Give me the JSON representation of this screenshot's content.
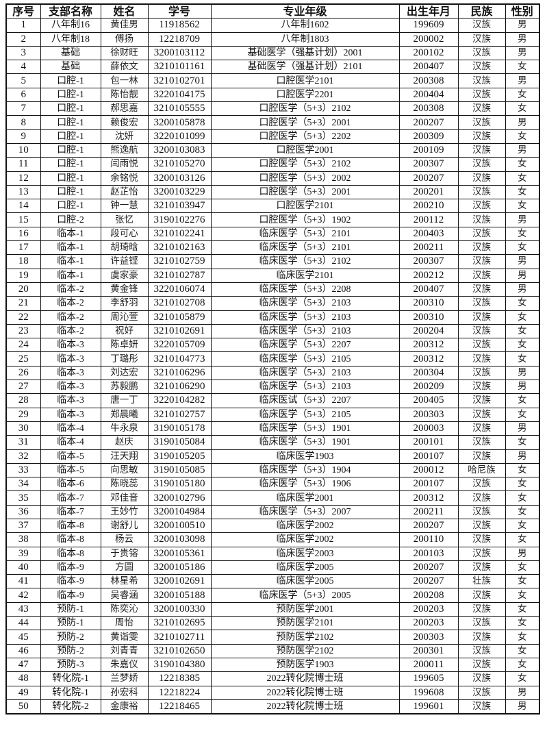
{
  "headers": [
    "序号",
    "支部名称",
    "姓名",
    "学号",
    "专业年级",
    "出生年月",
    "民族",
    "性别"
  ],
  "rows": [
    [
      "1",
      "八年制16",
      "黄佳男",
      "11918562",
      "八年制1602",
      "199609",
      "汉族",
      "男"
    ],
    [
      "2",
      "八年制18",
      "傅扬",
      "12218709",
      "八年制1803",
      "200002",
      "汉族",
      "男"
    ],
    [
      "3",
      "基础",
      "徐财旺",
      "3200103112",
      "基础医学（强基计划）2001",
      "200102",
      "汉族",
      "男"
    ],
    [
      "4",
      "基础",
      "薛依文",
      "3210101161",
      "基础医学（强基计划）2101",
      "200407",
      "汉族",
      "女"
    ],
    [
      "5",
      "口腔-1",
      "包一林",
      "3210102701",
      "口腔医学2101",
      "200308",
      "汉族",
      "男"
    ],
    [
      "6",
      "口腔-1",
      "陈怡靓",
      "3220104175",
      "口腔医学2201",
      "200404",
      "汉族",
      "女"
    ],
    [
      "7",
      "口腔-1",
      "郝思嘉",
      "3210105555",
      "口腔医学（5+3）2102",
      "200308",
      "汉族",
      "女"
    ],
    [
      "8",
      "口腔-1",
      "赖俊宏",
      "3200105878",
      "口腔医学（5+3）2001",
      "200207",
      "汉族",
      "男"
    ],
    [
      "9",
      "口腔-1",
      "沈妍",
      "3220101099",
      "口腔医学（5+3）2202",
      "200309",
      "汉族",
      "女"
    ],
    [
      "10",
      "口腔-1",
      "熊逸航",
      "3200103083",
      "口腔医学2001",
      "200109",
      "汉族",
      "男"
    ],
    [
      "11",
      "口腔-1",
      "闫雨悦",
      "3210105270",
      "口腔医学（5+3）2102",
      "200307",
      "汉族",
      "女"
    ],
    [
      "12",
      "口腔-1",
      "余铭悦",
      "3200103126",
      "口腔医学（5+3）2002",
      "200207",
      "汉族",
      "女"
    ],
    [
      "13",
      "口腔-1",
      "赵芷怡",
      "3200103229",
      "口腔医学（5+3）2001",
      "200201",
      "汉族",
      "女"
    ],
    [
      "14",
      "口腔-1",
      "钟一慧",
      "3210103947",
      "口腔医学2101",
      "200210",
      "汉族",
      "女"
    ],
    [
      "15",
      "口腔-2",
      "张忆",
      "3190102276",
      "口腔医学（5+3）1902",
      "200112",
      "汉族",
      "男"
    ],
    [
      "16",
      "临本-1",
      "段可心",
      "3210102241",
      "临床医学（5+3）2101",
      "200403",
      "汉族",
      "女"
    ],
    [
      "17",
      "临本-1",
      "胡琦晗",
      "3210102163",
      "临床医学（5+3）2101",
      "200211",
      "汉族",
      "女"
    ],
    [
      "18",
      "临本-1",
      "许益铿",
      "3210102759",
      "临床医学（5+3）2102",
      "200307",
      "汉族",
      "男"
    ],
    [
      "19",
      "临本-1",
      "虞家豪",
      "3210102787",
      "临床医学2101",
      "200212",
      "汉族",
      "男"
    ],
    [
      "20",
      "临本-2",
      "黄金锋",
      "3220106074",
      "临床医学（5+3）2208",
      "200407",
      "汉族",
      "男"
    ],
    [
      "21",
      "临本-2",
      "李舒羽",
      "3210102708",
      "临床医学（5+3）2103",
      "200310",
      "汉族",
      "女"
    ],
    [
      "22",
      "临本-2",
      "周沁萱",
      "3210105879",
      "临床医学（5+3）2103",
      "200310",
      "汉族",
      "女"
    ],
    [
      "23",
      "临本-2",
      "祝好",
      "3210102691",
      "临床医学（5+3）2103",
      "200204",
      "汉族",
      "女"
    ],
    [
      "24",
      "临本-3",
      "陈卓妍",
      "3220105709",
      "临床医学（5+3）2207",
      "200312",
      "汉族",
      "女"
    ],
    [
      "25",
      "临本-3",
      "丁璐彤",
      "3210104773",
      "临床医学（5+3）2105",
      "200312",
      "汉族",
      "女"
    ],
    [
      "26",
      "临本-3",
      "刘达宏",
      "3210106296",
      "临床医学（5+3）2103",
      "200304",
      "汉族",
      "男"
    ],
    [
      "27",
      "临本-3",
      "苏毅鹏",
      "3210106290",
      "临床医学（5+3）2103",
      "200209",
      "汉族",
      "男"
    ],
    [
      "28",
      "临本-3",
      "唐一丁",
      "3220104282",
      "临床医试（5+3）2207",
      "200405",
      "汉族",
      "女"
    ],
    [
      "29",
      "临本-3",
      "郑晨曦",
      "3210102757",
      "临床医学（5+3）2105",
      "200303",
      "汉族",
      "女"
    ],
    [
      "30",
      "临本-4",
      "牛永泉",
      "3190105178",
      "临床医学（5+3）1901",
      "200003",
      "汉族",
      "男"
    ],
    [
      "31",
      "临本-4",
      "赵庆",
      "3190105084",
      "临床医学（5+3）1901",
      "200101",
      "汉族",
      "女"
    ],
    [
      "32",
      "临本-5",
      "汪天翔",
      "3190105205",
      "临床医学1903",
      "200107",
      "汉族",
      "男"
    ],
    [
      "33",
      "临本-5",
      "向思敏",
      "3190105085",
      "临床医学（5+3）1904",
      "200012",
      "哈尼族",
      "女"
    ],
    [
      "34",
      "临本-6",
      "陈晓蕊",
      "3190105180",
      "临床医学（5+3）1906",
      "200107",
      "汉族",
      "女"
    ],
    [
      "35",
      "临本-7",
      "邓佳音",
      "3200102796",
      "临床医学2001",
      "200312",
      "汉族",
      "女"
    ],
    [
      "36",
      "临本-7",
      "王妙竹",
      "3200104984",
      "临床医学（5+3）2007",
      "200211",
      "汉族",
      "女"
    ],
    [
      "37",
      "临本-8",
      "谢舒儿",
      "3200100510",
      "临床医学2002",
      "200207",
      "汉族",
      "女"
    ],
    [
      "38",
      "临本-8",
      "杨云",
      "3200103098",
      "临床医学2002",
      "200110",
      "汉族",
      "女"
    ],
    [
      "39",
      "临本-8",
      "于贵镕",
      "3200105361",
      "临床医学2003",
      "200103",
      "汉族",
      "男"
    ],
    [
      "40",
      "临本-9",
      "方圆",
      "3200105186",
      "临床医学2005",
      "200207",
      "汉族",
      "女"
    ],
    [
      "41",
      "临本-9",
      "林星希",
      "3200102691",
      "临床医学2005",
      "200207",
      "壮族",
      "女"
    ],
    [
      "42",
      "临本-9",
      "吴睿涵",
      "3200105188",
      "临床医学（5+3）2005",
      "200208",
      "汉族",
      "女"
    ],
    [
      "43",
      "预防-1",
      "陈奕沁",
      "3200100330",
      "预防医学2001",
      "200203",
      "汉族",
      "女"
    ],
    [
      "44",
      "预防-1",
      "周怡",
      "3210102695",
      "预防医学2101",
      "200203",
      "汉族",
      "女"
    ],
    [
      "45",
      "预防-2",
      "黄诣雯",
      "3210102711",
      "预防医学2102",
      "200303",
      "汉族",
      "女"
    ],
    [
      "46",
      "预防-2",
      "刘青青",
      "3210102650",
      "预防医学2102",
      "200301",
      "汉族",
      "女"
    ],
    [
      "47",
      "预防-3",
      "朱嘉仪",
      "3190104380",
      "预防医学1903",
      "200011",
      "汉族",
      "女"
    ],
    [
      "48",
      "转化院-1",
      "兰梦娇",
      "12218385",
      "2022转化院博士班",
      "199605",
      "汉族",
      "女"
    ],
    [
      "49",
      "转化院-1",
      "孙宏科",
      "12218224",
      "2022转化院博士班",
      "199608",
      "汉族",
      "男"
    ],
    [
      "50",
      "转化院-2",
      "金康裕",
      "12218465",
      "2022转化院博士班",
      "199601",
      "汉族",
      "男"
    ]
  ]
}
